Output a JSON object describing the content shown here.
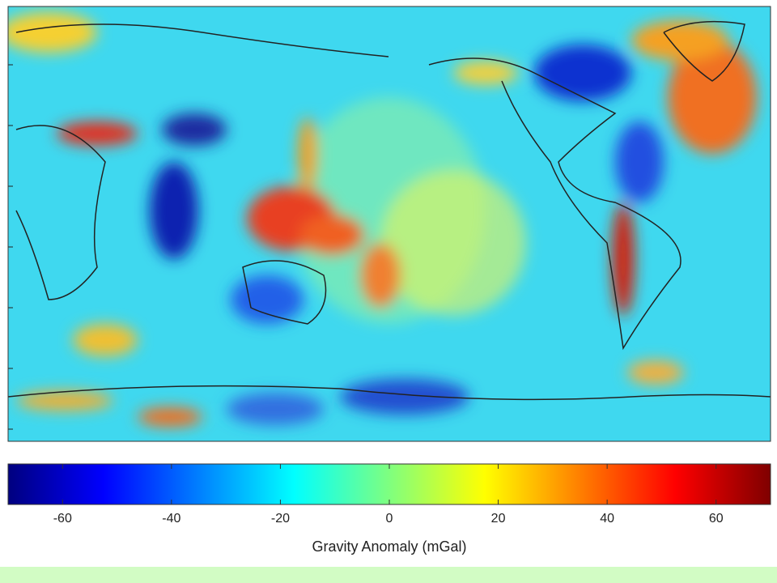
{
  "colorbar": {
    "label": "Gravity Anomaly (mGal)",
    "lim": [
      -70,
      70
    ],
    "ticks": [
      -60,
      -40,
      -20,
      0,
      20,
      40,
      60
    ],
    "colors": [
      "#00007f",
      "#0000ff",
      "#007fff",
      "#00ffff",
      "#7fff7f",
      "#ffff00",
      "#ff7f00",
      "#ff0000",
      "#7f0000"
    ]
  }
}
